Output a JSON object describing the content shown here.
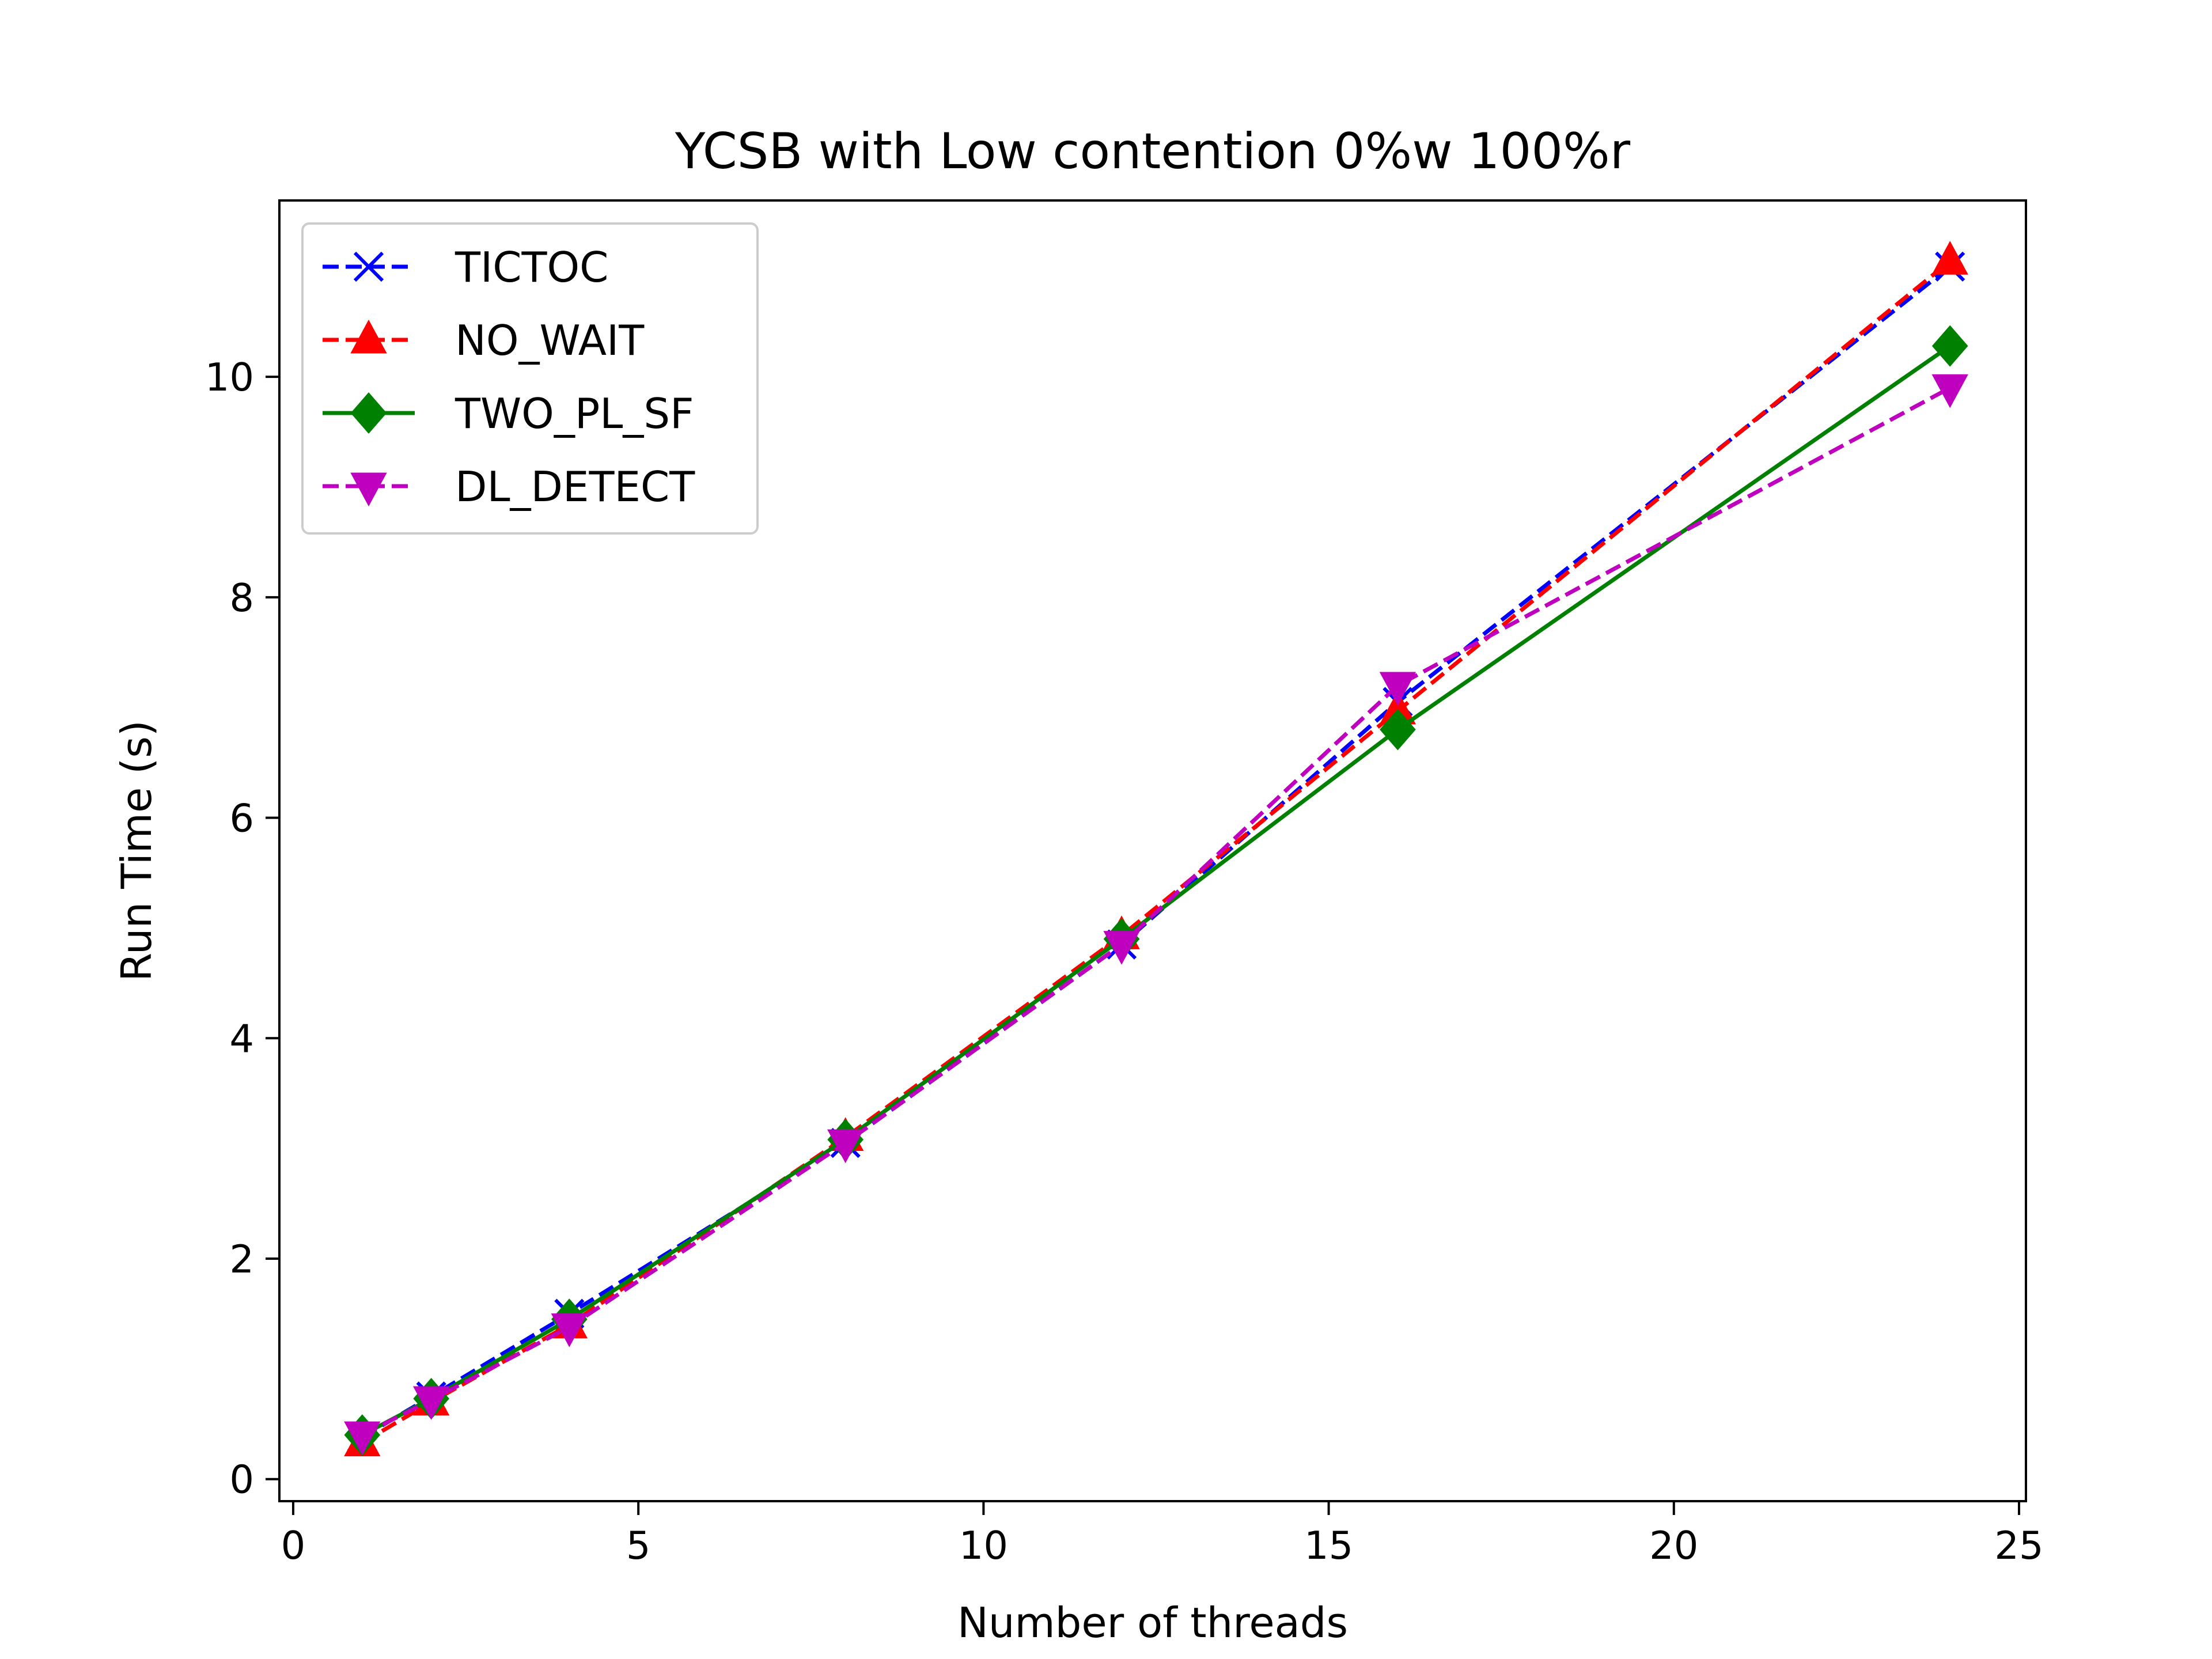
{
  "chart_data": {
    "type": "line",
    "title": "YCSB with Low contention 0%w 100%r",
    "xlabel": "Number of threads",
    "ylabel": "Run Time (s)",
    "xlim": [
      -0.2,
      25.1
    ],
    "ylim": [
      -0.2,
      11.6
    ],
    "xticks": [
      0,
      5,
      10,
      15,
      20,
      25
    ],
    "yticks": [
      0,
      2,
      4,
      6,
      8,
      10
    ],
    "grid": false,
    "legend_position": "upper-left",
    "series": [
      {
        "name": "TICTOC",
        "color": "#0000ff",
        "linestyle": "dashed",
        "marker": "x",
        "x": [
          1,
          2,
          4,
          8,
          12,
          16,
          24
        ],
        "y": [
          0.38,
          0.75,
          1.5,
          3.05,
          4.85,
          7.05,
          11.0
        ]
      },
      {
        "name": "NO_WAIT",
        "color": "#ff0000",
        "linestyle": "dashed",
        "marker": "triangle-up",
        "x": [
          1,
          2,
          4,
          8,
          12,
          16,
          24
        ],
        "y": [
          0.33,
          0.7,
          1.4,
          3.1,
          4.93,
          6.97,
          11.05
        ]
      },
      {
        "name": "TWO_PL_SF",
        "color": "#008000",
        "linestyle": "solid",
        "marker": "diamond",
        "x": [
          1,
          2,
          4,
          8,
          12,
          16,
          24
        ],
        "y": [
          0.4,
          0.73,
          1.45,
          3.08,
          4.9,
          6.8,
          10.28
        ]
      },
      {
        "name": "DL_DETECT",
        "color": "#bf00bf",
        "linestyle": "dashed",
        "marker": "triangle-down",
        "x": [
          1,
          2,
          4,
          8,
          12,
          16,
          24
        ],
        "y": [
          0.4,
          0.72,
          1.38,
          3.05,
          4.85,
          7.2,
          9.9
        ]
      }
    ]
  }
}
